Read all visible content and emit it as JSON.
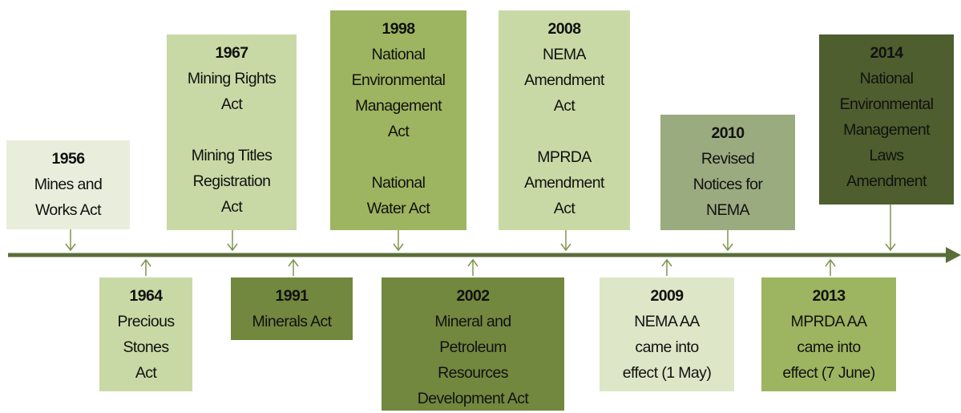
{
  "events": [
    {
      "year": "1956",
      "paragraphs": [
        [
          "Mines and",
          "Works Act"
        ]
      ]
    },
    {
      "year": "1964",
      "paragraphs": [
        [
          "Precious",
          "Stones",
          "Act"
        ]
      ]
    },
    {
      "year": "1967",
      "paragraphs": [
        [
          "Mining Rights",
          "Act"
        ],
        [
          "Mining Titles",
          "Registration",
          "Act"
        ]
      ]
    },
    {
      "year": "1991",
      "paragraphs": [
        [
          "Minerals Act"
        ]
      ]
    },
    {
      "year": "1998",
      "paragraphs": [
        [
          "National",
          "Environmental",
          "Management",
          "Act"
        ],
        [
          "National",
          "Water Act"
        ]
      ]
    },
    {
      "year": "2002",
      "paragraphs": [
        [
          "Mineral and",
          "Petroleum",
          "Resources",
          "Development Act"
        ]
      ]
    },
    {
      "year": "2008",
      "paragraphs": [
        [
          "NEMA",
          "Amendment",
          "Act"
        ],
        [
          "MPRDA",
          "Amendment",
          "Act"
        ]
      ]
    },
    {
      "year": "2009",
      "paragraphs": [
        [
          "NEMA AA",
          "came into",
          "effect (1 May)"
        ]
      ]
    },
    {
      "year": "2010",
      "paragraphs": [
        [
          "Revised",
          "Notices for",
          "NEMA"
        ]
      ]
    },
    {
      "year": "2013",
      "paragraphs": [
        [
          "MPRDA AA",
          "came into",
          "effect (7 June)"
        ]
      ]
    },
    {
      "year": "2014",
      "paragraphs": [
        [
          "National",
          "Environmental",
          "Management",
          "Laws",
          "Amendment"
        ]
      ]
    }
  ]
}
